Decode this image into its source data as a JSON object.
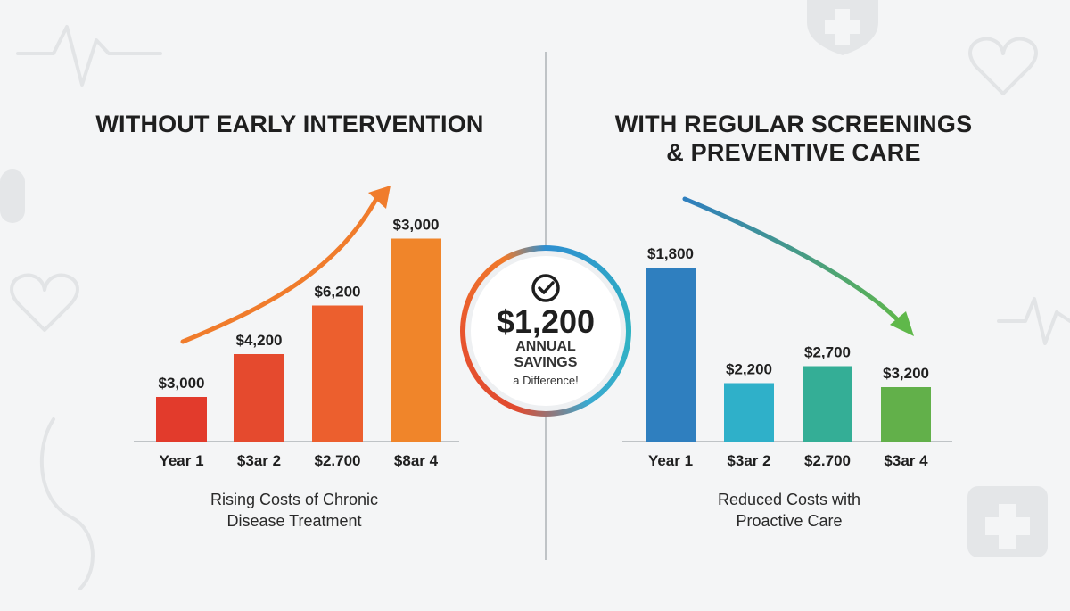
{
  "left_panel": {
    "title": "WITHOUT EARLY INTERVENTION",
    "caption_line1": "Rising Costs of Chronic",
    "caption_line2": "Disease Treatment"
  },
  "right_panel": {
    "title_line1": "WITH REGULAR SCREENINGS",
    "title_line2": "& PREVENTIVE CARE",
    "caption_line1": "Reduced Costs with",
    "caption_line2": "Proactive Care"
  },
  "savings_badge": {
    "amount": "$1,200",
    "line1": "ANNUAL",
    "line2": "SAVINGS",
    "line3": "a Difference!",
    "icon": "check-circle-icon"
  },
  "chart_data": [
    {
      "type": "bar",
      "title": "WITHOUT EARLY INTERVENTION",
      "categories": [
        "Year 1",
        "$3ar 2",
        "$2.700",
        "$8ar 4"
      ],
      "values": [
        3000,
        4200,
        6200,
        3000
      ],
      "labels": [
        "$3,000",
        "$4,200",
        "$6,200",
        "$3,000"
      ],
      "heights": [
        1.0,
        1.96,
        3.05,
        4.55
      ],
      "colors": [
        "#e23b2c",
        "#e54a2e",
        "#ec5f2e",
        "#f0852a"
      ],
      "trend_arrow": "up",
      "arrow_color": "#f07c2c",
      "caption": "Rising Costs of Chronic Disease Treatment"
    },
    {
      "type": "bar",
      "title": "WITH REGULAR SCREENINGS & PREVENTIVE CARE",
      "categories": [
        "Year 1",
        "$3ar 2",
        "$2.700",
        "$3ar 4"
      ],
      "values": [
        1800,
        2200,
        2700,
        3200
      ],
      "labels": [
        "$1,800",
        "$2,200",
        "$2,700",
        "$3,200"
      ],
      "heights": [
        3.9,
        1.31,
        1.69,
        1.22
      ],
      "colors": [
        "#2f7fbf",
        "#2fb0c9",
        "#34ae96",
        "#62b04a"
      ],
      "trend_arrow": "down",
      "arrow_color_start": "#2f7fbf",
      "arrow_color_end": "#5fb84a",
      "caption": "Reduced Costs with Proactive Care"
    }
  ]
}
